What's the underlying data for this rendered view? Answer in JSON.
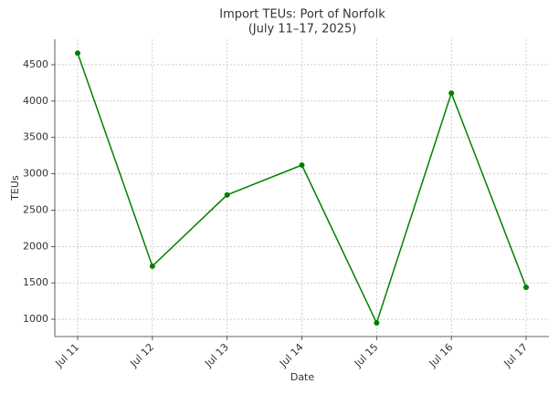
{
  "chart_data": {
    "type": "line",
    "title": "Import TEUs: Port of Norfolk",
    "subtitle": "(July 11–17, 2025)",
    "x_label": "Date",
    "y_label": "TEUs",
    "categories": [
      "Jul 11",
      "Jul 12",
      "Jul 13",
      "Jul 14",
      "Jul 15",
      "Jul 16",
      "Jul 17"
    ],
    "series": [
      {
        "name": "Import TEUs",
        "color": "#008000",
        "values": [
          4660,
          1730,
          2710,
          3120,
          950,
          4110,
          1440
        ]
      }
    ],
    "ylim": [
      762,
      4851
    ],
    "yticks": [
      1000,
      1500,
      2000,
      2500,
      3000,
      3500,
      4000,
      4500
    ],
    "grid": true
  }
}
